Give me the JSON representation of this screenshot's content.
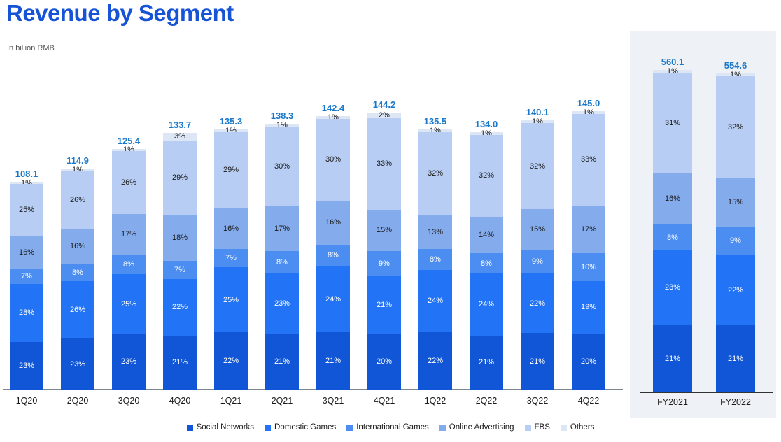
{
  "title": "Revenue by Segment",
  "subtitle": "In billion RMB",
  "colors": {
    "title": "#1653d6",
    "total_label": "#1b78c9",
    "axis_quarterly": "#7d8790",
    "axis_fiscal": "#333333",
    "panel_bg": "#eef1f6",
    "label_dark": "#1a1a1a",
    "label_light": "#ffffff"
  },
  "chart_data": {
    "type": "bar",
    "stacked": true,
    "unit": "billion RMB",
    "grid": false,
    "legend_position": "bottom",
    "series_names": [
      "Social Networks",
      "Domestic Games",
      "International Games",
      "Online Advertising",
      "FBS",
      "Others"
    ],
    "series_colors": [
      "#1056d6",
      "#2273f5",
      "#4c8df2",
      "#84abec",
      "#b7cdf3",
      "#dde6f4"
    ],
    "quarterly": {
      "categories": [
        "1Q20",
        "2Q20",
        "3Q20",
        "4Q20",
        "1Q21",
        "2Q21",
        "3Q21",
        "4Q21",
        "1Q22",
        "2Q22",
        "3Q22",
        "4Q22"
      ],
      "totals": [
        108.1,
        114.9,
        125.4,
        133.7,
        135.3,
        138.3,
        142.4,
        144.2,
        135.5,
        134.0,
        140.1,
        145.0
      ],
      "pct_bottom_to_top": [
        [
          23,
          28,
          7,
          16,
          25,
          1
        ],
        [
          23,
          26,
          8,
          16,
          26,
          1
        ],
        [
          23,
          25,
          8,
          17,
          26,
          1
        ],
        [
          21,
          22,
          7,
          18,
          29,
          3
        ],
        [
          22,
          25,
          7,
          16,
          29,
          1
        ],
        [
          21,
          23,
          8,
          17,
          30,
          1
        ],
        [
          21,
          24,
          8,
          16,
          30,
          1
        ],
        [
          20,
          21,
          9,
          15,
          33,
          2
        ],
        [
          22,
          24,
          8,
          13,
          32,
          1
        ],
        [
          21,
          24,
          8,
          14,
          32,
          1
        ],
        [
          21,
          22,
          9,
          15,
          32,
          1
        ],
        [
          20,
          19,
          10,
          17,
          33,
          1
        ]
      ]
    },
    "fiscal": {
      "categories": [
        "FY2021",
        "FY2022"
      ],
      "totals": [
        560.1,
        554.6
      ],
      "pct_bottom_to_top": [
        [
          21,
          23,
          8,
          16,
          31,
          1
        ],
        [
          21,
          22,
          9,
          15,
          32,
          1
        ]
      ]
    }
  }
}
